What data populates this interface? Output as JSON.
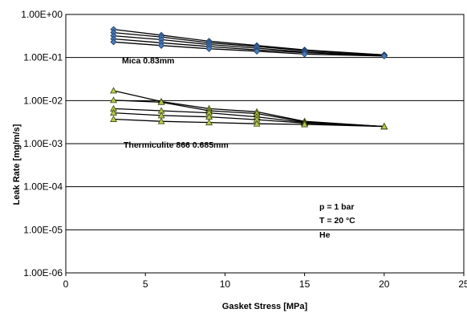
{
  "chart_data": {
    "type": "line",
    "xlabel": "Gasket Stress [MPa]",
    "ylabel": "Leak Rate [mg/m/s]",
    "xlim": [
      0,
      25
    ],
    "xticks": [
      0,
      5,
      10,
      15,
      20,
      25
    ],
    "ylim": [
      1e-06,
      1
    ],
    "yscale": "log",
    "yticks": [
      "1.00E-06",
      "1.00E-05",
      "1.00E-04",
      "1.00E-03",
      "1.00E-02",
      "1.00E-01",
      "1.00E+00"
    ],
    "grid": "horizontal",
    "annotations": [
      "Mica 0.83mm",
      "Thermiculite 866 0.685mm",
      "p = 1 bar",
      "T = 20 °C",
      "He"
    ],
    "colors": {
      "mica_marker": "#4a7ab8",
      "therm_marker": "#b5c94a",
      "line": "#000000"
    },
    "series": [
      {
        "group": "mica",
        "x": [
          3,
          6,
          9,
          12,
          15,
          20
        ],
        "y": [
          0.45,
          0.33,
          0.24,
          0.19,
          0.15,
          0.115
        ]
      },
      {
        "group": "mica",
        "x": [
          3,
          6,
          9,
          12,
          15,
          20
        ],
        "y": [
          0.38,
          0.3,
          0.22,
          0.18,
          0.145,
          0.115
        ]
      },
      {
        "group": "mica",
        "x": [
          3,
          6,
          9,
          12,
          15,
          20
        ],
        "y": [
          0.32,
          0.26,
          0.2,
          0.165,
          0.135,
          0.112
        ]
      },
      {
        "group": "mica",
        "x": [
          3,
          6,
          9,
          12,
          15,
          20
        ],
        "y": [
          0.27,
          0.22,
          0.18,
          0.15,
          0.13,
          0.11
        ]
      },
      {
        "group": "mica",
        "x": [
          3,
          6,
          9,
          12,
          15,
          20
        ],
        "y": [
          0.23,
          0.19,
          0.16,
          0.14,
          0.12,
          0.108
        ]
      },
      {
        "group": "therm",
        "x": [
          3,
          6,
          9,
          12,
          15,
          20
        ],
        "y": [
          0.017,
          0.0095,
          0.0065,
          0.0055,
          0.0033,
          0.0025
        ]
      },
      {
        "group": "therm",
        "x": [
          3,
          6,
          9,
          12,
          15,
          20
        ],
        "y": [
          0.0102,
          0.0092,
          0.0058,
          0.005,
          0.0032,
          0.0025
        ]
      },
      {
        "group": "therm",
        "x": [
          3,
          6,
          9,
          12,
          15,
          20
        ],
        "y": [
          0.0065,
          0.0058,
          0.0052,
          0.0042,
          0.0031,
          0.0025
        ]
      },
      {
        "group": "therm",
        "x": [
          3,
          6,
          9,
          12,
          15,
          20
        ],
        "y": [
          0.0052,
          0.0045,
          0.0042,
          0.0036,
          0.003,
          0.0025
        ]
      },
      {
        "group": "therm",
        "x": [
          3,
          6,
          9,
          12,
          15,
          20
        ],
        "y": [
          0.0037,
          0.0033,
          0.0031,
          0.0029,
          0.0028,
          0.0025
        ]
      }
    ]
  }
}
